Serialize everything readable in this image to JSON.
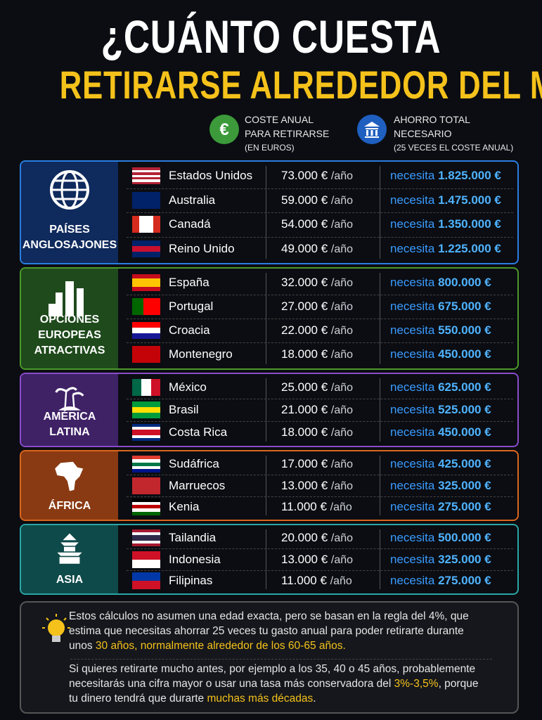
{
  "header": {
    "title_line1": "¿CUÁNTO CUESTA",
    "title_line2": "RETIRARSE ALREDEDOR DEL MUNDO?"
  },
  "legend": {
    "cost": {
      "icon": "€",
      "lines": [
        "COSTE ANUAL",
        "PARA RETIRARSE",
        "(EN EUROS)"
      ]
    },
    "savings": {
      "lines": [
        "AHORRO TOTAL",
        "NECESARIO",
        "(25 VECES EL COSTE ANUAL)"
      ]
    }
  },
  "table": {
    "cost_unit": "/año",
    "needs_label": "necesita",
    "groups": [
      {
        "label_lines": [
          "PAÍSES",
          "ANGLOSAJONES"
        ],
        "color": "#2b7de0",
        "panel": "#0f2a5c",
        "rows": [
          {
            "country": "Estados Unidos",
            "cost": "73.000 €",
            "savings": "1.825.000 €"
          },
          {
            "country": "Australia",
            "cost": "59.000 €",
            "savings": "1.475.000 €"
          },
          {
            "country": "Canadá",
            "cost": "54.000 €",
            "savings": "1.350.000 €"
          },
          {
            "country": "Reino Unido",
            "cost": "49.000 €",
            "savings": "1.225.000 €"
          }
        ]
      },
      {
        "label_lines": [
          "OPCIONES",
          "EUROPEAS",
          "ATRACTIVAS"
        ],
        "color": "#4c9a2a",
        "panel": "#1f4a1c",
        "rows": [
          {
            "country": "España",
            "cost": "32.000 €",
            "savings": "800.000 €"
          },
          {
            "country": "Portugal",
            "cost": "27.000 €",
            "savings": "675.000 €"
          },
          {
            "country": "Croacia",
            "cost": "22.000 €",
            "savings": "550.000 €"
          },
          {
            "country": "Montenegro",
            "cost": "18.000 €",
            "savings": "450.000 €"
          }
        ]
      },
      {
        "label_lines": [
          "AMÉRICA",
          "LATINA"
        ],
        "color": "#8a4cc9",
        "panel": "#3f2166",
        "rows": [
          {
            "country": "México",
            "cost": "25.000 €",
            "savings": "625.000 €"
          },
          {
            "country": "Brasil",
            "cost": "21.000 €",
            "savings": "525.000 €"
          },
          {
            "country": "Costa Rica",
            "cost": "18.000 €",
            "savings": "450.000 €"
          }
        ]
      },
      {
        "label_lines": [
          "ÁFRICA"
        ],
        "color": "#d9661e",
        "panel": "#8a3a12",
        "rows": [
          {
            "country": "Sudáfrica",
            "cost": "17.000 €",
            "savings": "425.000 €"
          },
          {
            "country": "Marruecos",
            "cost": "13.000 €",
            "savings": "325.000 €"
          },
          {
            "country": "Kenia",
            "cost": "11.000 €",
            "savings": "275.000 €"
          }
        ]
      },
      {
        "label_lines": [
          "ASIA"
        ],
        "color": "#2aa6a6",
        "panel": "#0f4a4a",
        "rows": [
          {
            "country": "Tailandia",
            "cost": "20.000 €",
            "savings": "500.000 €"
          },
          {
            "country": "Indonesia",
            "cost": "13.000 €",
            "savings": "325.000 €"
          },
          {
            "country": "Filipinas",
            "cost": "11.000 €",
            "savings": "275.000 €"
          }
        ]
      }
    ]
  },
  "note": {
    "paragraphs": [
      [
        {
          "text": "Estos cálculos no asumen una edad exacta, pero se basan en la regla del 4%, que estima que necesitas ahorrar 25 veces tu gasto anual para poder retirarte durante unos ",
          "highlight": false
        },
        {
          "text": "30 años, normalmente alrededor de los 60-65 años.",
          "highlight": true
        }
      ],
      [
        {
          "text": "Si quieres retirarte mucho antes, por ejemplo a los 35, 40 o 45 años, probablemente necesitarás una cifra mayor o usar una tasa más conservadora del ",
          "highlight": false
        },
        {
          "text": "3%-3,5%",
          "highlight": true
        },
        {
          "text": ", porque tu dinero tendrá que durarte ",
          "highlight": false
        },
        {
          "text": "muchas más décadas",
          "highlight": true
        },
        {
          "text": ".",
          "highlight": false
        }
      ]
    ]
  }
}
